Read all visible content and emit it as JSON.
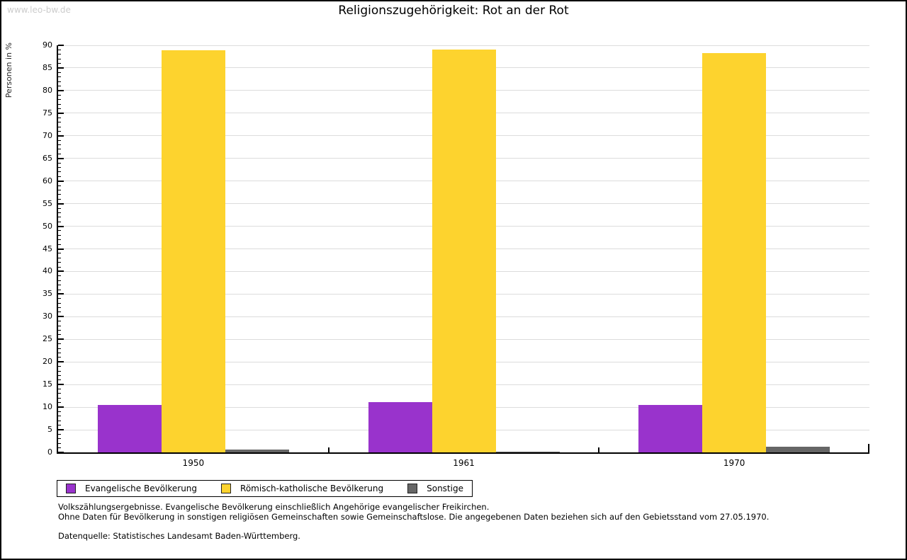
{
  "watermark": "www.leo-bw.de",
  "chart_data": {
    "type": "bar",
    "title": "Religionszugehörigkeit: Rot an der Rot",
    "ylabel": "Personen in %",
    "xlabel": "",
    "ylim": [
      0,
      90
    ],
    "ytick_major": 5,
    "ytick_minor": 1,
    "grid": true,
    "legend_position": "bottom-left",
    "categories": [
      "1950",
      "1961",
      "1970"
    ],
    "series": [
      {
        "name": "Evangelische Bevölkerung",
        "color": "#9933CC",
        "values": [
          10.5,
          11.1,
          10.5
        ]
      },
      {
        "name": "Römisch-katholische Bevölkerung",
        "color": "#FDD32E",
        "values": [
          88.9,
          89.1,
          88.3
        ]
      },
      {
        "name": "Sonstige",
        "color": "#666666",
        "values": [
          0.7,
          0.2,
          1.3
        ]
      }
    ],
    "grid_color": "#dcdcdc",
    "axis_color": "#000000"
  },
  "footnotes": {
    "line1": "Volkszählungsergebnisse. Evangelische Bevölkerung einschließlich Angehörige evangelischer Freikirchen.",
    "line2": "Ohne Daten für Bevölkerung in sonstigen religiösen Gemeinschaften sowie Gemeinschaftslose. Die angegebenen Daten beziehen sich auf den Gebietsstand vom 27.05.1970.",
    "source": "Datenquelle: Statistisches Landesamt Baden-Württemberg."
  }
}
